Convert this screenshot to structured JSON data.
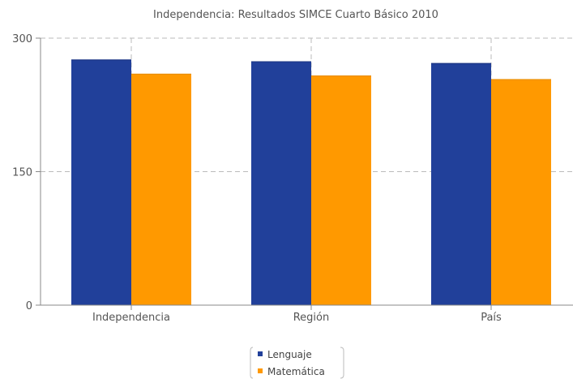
{
  "chart_data": {
    "type": "bar",
    "title": "Independencia: Resultados SIMCE Cuarto Básico 2010",
    "categories": [
      "Independencia",
      "Región",
      "País"
    ],
    "series": [
      {
        "name": "Lenguaje",
        "color": "#21409A",
        "values": [
          276,
          274,
          272
        ]
      },
      {
        "name": "Matemática",
        "color": "#FF9900",
        "values": [
          260,
          258,
          254
        ]
      }
    ],
    "y_ticks": [
      0,
      150,
      300
    ],
    "y_tick_labels": [
      "0",
      "150",
      "300"
    ],
    "ylim": [
      0,
      300
    ],
    "grid": true,
    "legend_position": "bottom-center"
  }
}
